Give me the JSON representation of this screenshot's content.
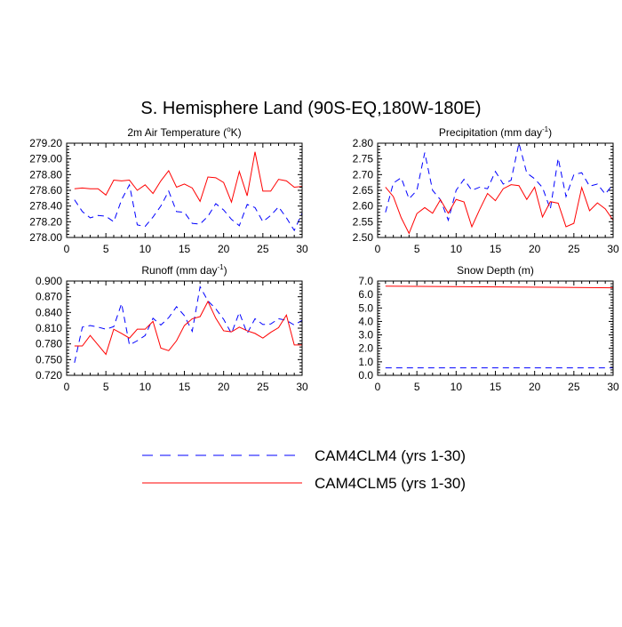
{
  "page_title": "S. Hemisphere Land (90S-EQ,180W-180E)",
  "legend": [
    {
      "label": "CAM4CLM4 (yrs 1-30)",
      "color": "#0000ff",
      "dash": "dashed"
    },
    {
      "label": "CAM4CLM5 (yrs 1-30)",
      "color": "#ff0000",
      "dash": "solid"
    }
  ],
  "chart_data": [
    {
      "type": "line",
      "title": "2m Air Temperature (°K)",
      "title_main": "2m Air Temperature (",
      "title_sup": "o",
      "title_tail": "K)",
      "xlim": [
        0,
        30
      ],
      "ylim": [
        278.0,
        279.2
      ],
      "xticks": [
        0,
        5,
        10,
        15,
        20,
        25,
        30
      ],
      "yticks": [
        "278.00",
        "278.20",
        "278.40",
        "278.60",
        "278.80",
        "279.00",
        "279.20"
      ],
      "x": [
        1,
        2,
        3,
        4,
        5,
        6,
        7,
        8,
        9,
        10,
        11,
        12,
        13,
        14,
        15,
        16,
        17,
        18,
        19,
        20,
        21,
        22,
        23,
        24,
        25,
        26,
        27,
        28,
        29,
        30
      ],
      "series": [
        {
          "name": "CAM4CLM4 (yrs 1-30)",
          "color": "#0000ff",
          "dash": "dashed",
          "values": [
            278.48,
            278.33,
            278.25,
            278.28,
            278.27,
            278.2,
            278.48,
            278.67,
            278.16,
            278.14,
            278.26,
            278.4,
            278.59,
            278.33,
            278.32,
            278.18,
            278.17,
            278.27,
            278.43,
            278.35,
            278.23,
            278.15,
            278.42,
            278.38,
            278.2,
            278.28,
            278.39,
            278.25,
            278.09,
            278.31
          ]
        },
        {
          "name": "CAM4CLM5 (yrs 1-30)",
          "color": "#ff0000",
          "dash": "solid",
          "values": [
            278.62,
            278.63,
            278.62,
            278.62,
            278.54,
            278.73,
            278.72,
            278.73,
            278.6,
            278.67,
            278.56,
            278.72,
            278.85,
            278.64,
            278.68,
            278.63,
            278.46,
            278.77,
            278.76,
            278.7,
            278.45,
            278.84,
            278.53,
            279.09,
            278.59,
            278.59,
            278.74,
            278.72,
            278.64,
            278.65
          ]
        }
      ]
    },
    {
      "type": "line",
      "title": "Precipitation (mm day-1)",
      "title_main": "Precipitation (mm day",
      "title_sup": "-1",
      "title_tail": ")",
      "xlim": [
        0,
        30
      ],
      "ylim": [
        2.5,
        2.8
      ],
      "xticks": [
        0,
        5,
        10,
        15,
        20,
        25,
        30
      ],
      "yticks": [
        "2.50",
        "2.55",
        "2.60",
        "2.65",
        "2.70",
        "2.75",
        "2.80"
      ],
      "x": [
        1,
        2,
        3,
        4,
        5,
        6,
        7,
        8,
        9,
        10,
        11,
        12,
        13,
        14,
        15,
        16,
        17,
        18,
        19,
        20,
        21,
        22,
        23,
        24,
        25,
        26,
        27,
        28,
        29,
        30
      ],
      "series": [
        {
          "name": "CAM4CLM4 (yrs 1-30)",
          "color": "#0000ff",
          "dash": "dashed",
          "values": [
            2.58,
            2.673,
            2.69,
            2.623,
            2.65,
            2.77,
            2.65,
            2.62,
            2.555,
            2.65,
            2.685,
            2.65,
            2.66,
            2.655,
            2.71,
            2.67,
            2.682,
            2.8,
            2.705,
            2.687,
            2.659,
            2.59,
            2.752,
            2.63,
            2.7,
            2.706,
            2.663,
            2.67,
            2.638,
            2.67
          ]
        },
        {
          "name": "CAM4CLM5 (yrs 1-30)",
          "color": "#ff0000",
          "dash": "solid",
          "values": [
            2.66,
            2.63,
            2.563,
            2.513,
            2.576,
            2.595,
            2.577,
            2.62,
            2.577,
            2.621,
            2.613,
            2.534,
            2.589,
            2.64,
            2.617,
            2.655,
            2.668,
            2.665,
            2.621,
            2.66,
            2.565,
            2.614,
            2.609,
            2.534,
            2.545,
            2.659,
            2.585,
            2.61,
            2.591,
            2.555
          ]
        }
      ]
    },
    {
      "type": "line",
      "title": "Runoff (mm day-1)",
      "title_main": "Runoff (mm day",
      "title_sup": "-1",
      "title_tail": ")",
      "xlim": [
        0,
        30
      ],
      "ylim": [
        0.72,
        0.9
      ],
      "xticks": [
        0,
        5,
        10,
        15,
        20,
        25,
        30
      ],
      "yticks": [
        "0.720",
        "0.750",
        "0.780",
        "0.810",
        "0.840",
        "0.870",
        "0.900"
      ],
      "x": [
        1,
        2,
        3,
        4,
        5,
        6,
        7,
        8,
        9,
        10,
        11,
        12,
        13,
        14,
        15,
        16,
        17,
        18,
        19,
        20,
        21,
        22,
        23,
        24,
        25,
        26,
        27,
        28,
        29,
        30
      ],
      "series": [
        {
          "name": "CAM4CLM4 (yrs 1-30)",
          "color": "#0000ff",
          "dash": "dashed",
          "values": [
            0.744,
            0.812,
            0.815,
            0.812,
            0.808,
            0.813,
            0.857,
            0.778,
            0.786,
            0.796,
            0.829,
            0.816,
            0.83,
            0.851,
            0.834,
            0.804,
            0.889,
            0.862,
            0.847,
            0.827,
            0.8,
            0.84,
            0.8,
            0.828,
            0.817,
            0.818,
            0.828,
            0.825,
            0.816,
            0.825
          ]
        },
        {
          "name": "CAM4CLM5 (yrs 1-30)",
          "color": "#ff0000",
          "dash": "solid",
          "values": [
            0.776,
            0.776,
            0.796,
            0.778,
            0.76,
            0.808,
            0.8,
            0.791,
            0.808,
            0.808,
            0.823,
            0.772,
            0.767,
            0.786,
            0.815,
            0.828,
            0.832,
            0.861,
            0.829,
            0.805,
            0.803,
            0.812,
            0.805,
            0.8,
            0.791,
            0.802,
            0.811,
            0.835,
            0.778,
            0.778
          ]
        }
      ]
    },
    {
      "type": "line",
      "title": "Snow Depth (m)",
      "title_main": "Snow Depth (m)",
      "title_sup": "",
      "title_tail": "",
      "xlim": [
        0,
        30
      ],
      "ylim": [
        0.0,
        7.0
      ],
      "xticks": [
        0,
        5,
        10,
        15,
        20,
        25,
        30
      ],
      "yticks": [
        "0.0",
        "1.0",
        "2.0",
        "3.0",
        "4.0",
        "5.0",
        "6.0",
        "7.0"
      ],
      "x": [
        1,
        30
      ],
      "series": [
        {
          "name": "CAM4CLM4 (yrs 1-30)",
          "color": "#0000ff",
          "dash": "dashed",
          "values": [
            0.55,
            0.55
          ]
        },
        {
          "name": "CAM4CLM5 (yrs 1-30)",
          "color": "#ff0000",
          "dash": "solid",
          "values": [
            6.62,
            6.5
          ]
        }
      ]
    }
  ]
}
